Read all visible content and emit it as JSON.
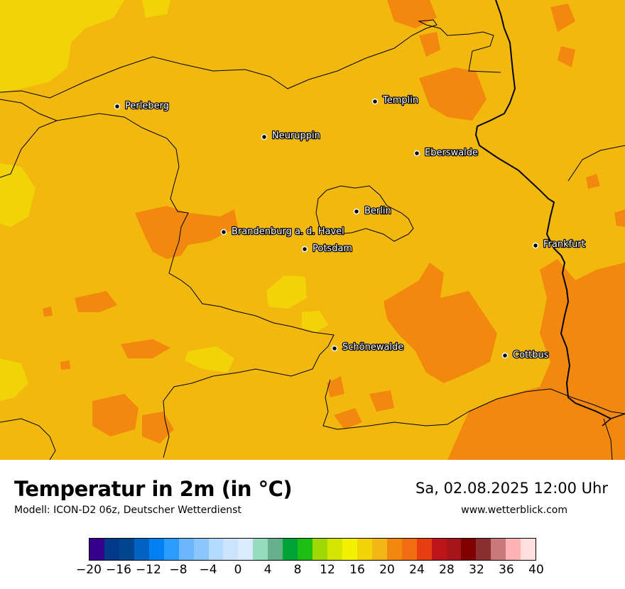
{
  "header": {
    "title": "Temperatur in 2m (in °C)",
    "subtitle": "Modell: ICON-D2 06z, Deutscher Wetterdienst",
    "datetime": "Sa, 02.08.2025 12:00 Uhr",
    "website": "www.wetterblick.com"
  },
  "cities": [
    {
      "name": "Perleberg"
    },
    {
      "name": "Templin"
    },
    {
      "name": "Neuruppin"
    },
    {
      "name": "Eberswalde"
    },
    {
      "name": "Berlin"
    },
    {
      "name": "Brandenburg a. d. Havel"
    },
    {
      "name": "Potsdam"
    },
    {
      "name": "Frankfurt"
    },
    {
      "name": "Schönewalde"
    },
    {
      "name": "Cottbus"
    }
  ],
  "legend": {
    "unit": "°C",
    "tick_labels": [
      "−20",
      "−16",
      "−12",
      "−8",
      "−4",
      "0",
      "4",
      "8",
      "12",
      "16",
      "20",
      "24",
      "28",
      "32",
      "36",
      "40"
    ],
    "colors": [
      "#35008a",
      "#003a88",
      "#00458e",
      "#0062c2",
      "#0080f2",
      "#2b9bff",
      "#6cb6ff",
      "#8cc6ff",
      "#b2daff",
      "#cbe4ff",
      "#dbeaff",
      "#95dbbe",
      "#66b08c",
      "#00a336",
      "#1cbf11",
      "#9fd905",
      "#d2e600",
      "#f2f200",
      "#f1d308",
      "#f2b714",
      "#f2880e",
      "#f26d11",
      "#e63e10",
      "#bd151a",
      "#a6151a",
      "#800000",
      "#8b2f30",
      "#c97979",
      "#ffb3b3",
      "#ffdede"
    ]
  }
}
